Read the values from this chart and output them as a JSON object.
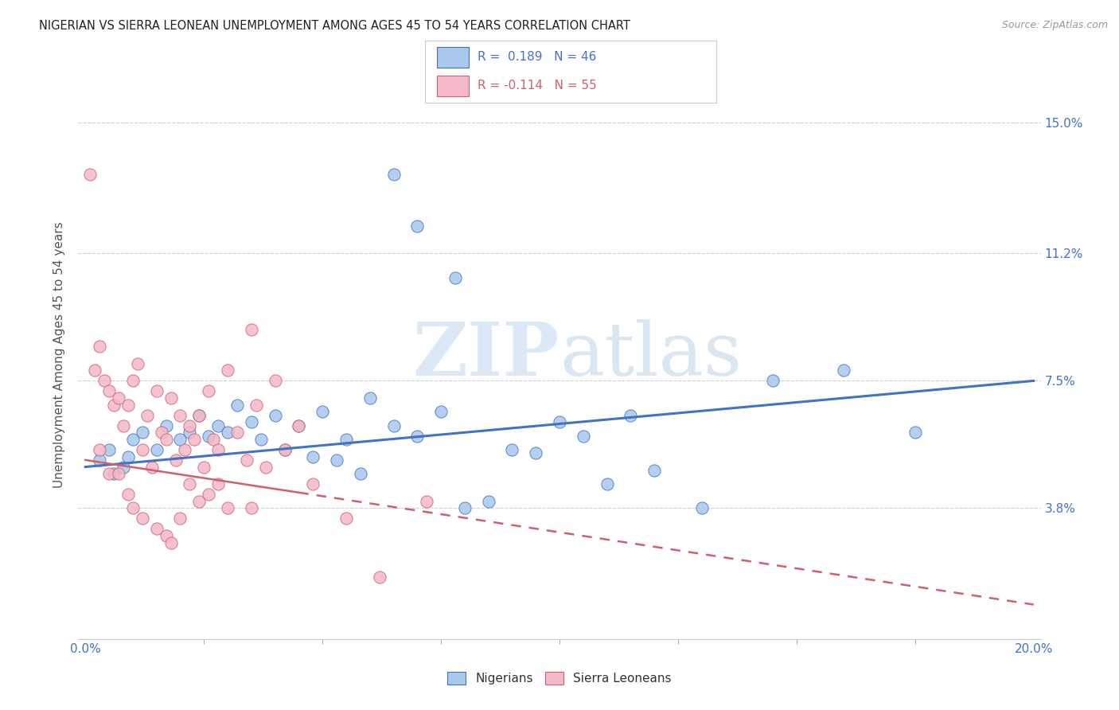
{
  "title": "NIGERIAN VS SIERRA LEONEAN UNEMPLOYMENT AMONG AGES 45 TO 54 YEARS CORRELATION CHART",
  "source": "Source: ZipAtlas.com",
  "ylabel_ticks_values": [
    3.8,
    7.5,
    11.2,
    15.0
  ],
  "xlim": [
    0.0,
    20.0
  ],
  "ylim": [
    0.0,
    16.5
  ],
  "ylabel": "Unemployment Among Ages 45 to 54 years",
  "watermark_zip": "ZIP",
  "watermark_atlas": "atlas",
  "bottom_legend": [
    "Nigerians",
    "Sierra Leoneans"
  ],
  "nigerian_color": "#a8c8ec",
  "sierraleonean_color": "#f4b8c8",
  "nigerian_line_color": "#4472c4",
  "sierraleonean_line_color": "#d06070",
  "nigerian_points": [
    [
      0.3,
      5.2
    ],
    [
      0.5,
      5.5
    ],
    [
      0.6,
      4.8
    ],
    [
      0.8,
      5.0
    ],
    [
      0.9,
      5.3
    ],
    [
      1.0,
      5.8
    ],
    [
      1.2,
      6.0
    ],
    [
      1.5,
      5.5
    ],
    [
      1.7,
      6.2
    ],
    [
      2.0,
      5.8
    ],
    [
      2.2,
      6.0
    ],
    [
      2.4,
      6.5
    ],
    [
      2.6,
      5.9
    ],
    [
      2.8,
      6.2
    ],
    [
      3.0,
      6.0
    ],
    [
      3.2,
      6.8
    ],
    [
      3.5,
      6.3
    ],
    [
      3.7,
      5.8
    ],
    [
      4.0,
      6.5
    ],
    [
      4.2,
      5.5
    ],
    [
      4.5,
      6.2
    ],
    [
      4.8,
      5.3
    ],
    [
      5.0,
      6.6
    ],
    [
      5.3,
      5.2
    ],
    [
      5.5,
      5.8
    ],
    [
      5.8,
      4.8
    ],
    [
      6.0,
      7.0
    ],
    [
      6.5,
      6.2
    ],
    [
      7.0,
      5.9
    ],
    [
      7.5,
      6.6
    ],
    [
      8.0,
      3.8
    ],
    [
      8.5,
      4.0
    ],
    [
      9.0,
      5.5
    ],
    [
      9.5,
      5.4
    ],
    [
      10.0,
      6.3
    ],
    [
      10.5,
      5.9
    ],
    [
      11.0,
      4.5
    ],
    [
      11.5,
      6.5
    ],
    [
      12.0,
      4.9
    ],
    [
      13.0,
      3.8
    ],
    [
      14.5,
      7.5
    ],
    [
      16.0,
      7.8
    ],
    [
      17.5,
      6.0
    ],
    [
      6.5,
      13.5
    ],
    [
      7.0,
      12.0
    ],
    [
      7.8,
      10.5
    ]
  ],
  "sierraleonean_points": [
    [
      0.1,
      13.5
    ],
    [
      0.2,
      7.8
    ],
    [
      0.3,
      8.5
    ],
    [
      0.4,
      7.5
    ],
    [
      0.5,
      7.2
    ],
    [
      0.6,
      6.8
    ],
    [
      0.7,
      7.0
    ],
    [
      0.8,
      6.2
    ],
    [
      0.9,
      6.8
    ],
    [
      1.0,
      7.5
    ],
    [
      1.1,
      8.0
    ],
    [
      1.2,
      5.5
    ],
    [
      1.3,
      6.5
    ],
    [
      1.4,
      5.0
    ],
    [
      1.5,
      7.2
    ],
    [
      1.6,
      6.0
    ],
    [
      1.7,
      5.8
    ],
    [
      1.8,
      7.0
    ],
    [
      1.9,
      5.2
    ],
    [
      2.0,
      6.5
    ],
    [
      2.1,
      5.5
    ],
    [
      2.2,
      6.2
    ],
    [
      2.3,
      5.8
    ],
    [
      2.4,
      6.5
    ],
    [
      2.5,
      5.0
    ],
    [
      2.6,
      7.2
    ],
    [
      2.7,
      5.8
    ],
    [
      2.8,
      5.5
    ],
    [
      3.0,
      7.8
    ],
    [
      3.2,
      6.0
    ],
    [
      3.4,
      5.2
    ],
    [
      3.5,
      9.0
    ],
    [
      3.6,
      6.8
    ],
    [
      3.8,
      5.0
    ],
    [
      4.0,
      7.5
    ],
    [
      4.2,
      5.5
    ],
    [
      4.5,
      6.2
    ],
    [
      0.3,
      5.5
    ],
    [
      0.5,
      4.8
    ],
    [
      0.7,
      4.8
    ],
    [
      0.9,
      4.2
    ],
    [
      1.0,
      3.8
    ],
    [
      1.2,
      3.5
    ],
    [
      1.5,
      3.2
    ],
    [
      1.7,
      3.0
    ],
    [
      1.8,
      2.8
    ],
    [
      2.0,
      3.5
    ],
    [
      2.2,
      4.5
    ],
    [
      2.4,
      4.0
    ],
    [
      2.6,
      4.2
    ],
    [
      2.8,
      4.5
    ],
    [
      3.0,
      3.8
    ],
    [
      3.5,
      3.8
    ],
    [
      4.8,
      4.5
    ],
    [
      6.2,
      1.8
    ],
    [
      5.5,
      3.5
    ],
    [
      7.2,
      4.0
    ]
  ],
  "grid_color": "#d0d0d0",
  "background_color": "#ffffff"
}
